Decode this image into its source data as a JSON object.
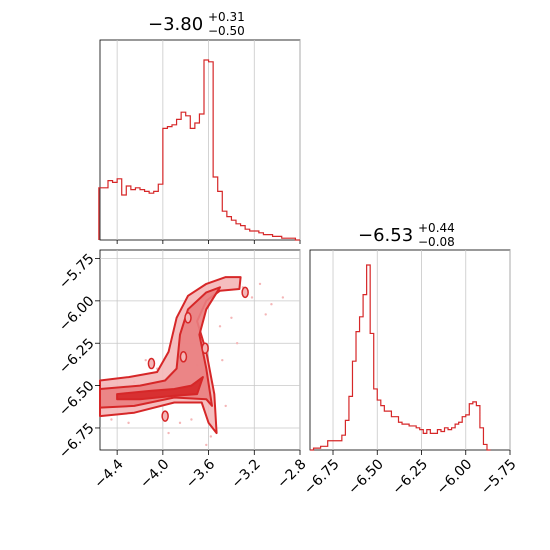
{
  "theme": {
    "accent": "#d62728",
    "fill_light": "#f4b6b7",
    "fill_mid": "#ea7e80",
    "grid": "#c8c8c8"
  },
  "chart_data": {
    "type": "corner",
    "parameters": [
      {
        "title_main": "−3.80",
        "title_sup": "+0.31",
        "title_sub": "−0.50",
        "xlim": [
          -4.55,
          -2.8
        ],
        "hist": [
          [
            -4.54,
            0.29
          ],
          [
            -4.5,
            0.29
          ],
          [
            -4.46,
            0.33
          ],
          [
            -4.42,
            0.32
          ],
          [
            -4.38,
            0.34
          ],
          [
            -4.34,
            0.25
          ],
          [
            -4.3,
            0.3
          ],
          [
            -4.26,
            0.28
          ],
          [
            -4.22,
            0.29
          ],
          [
            -4.18,
            0.28
          ],
          [
            -4.14,
            0.27
          ],
          [
            -4.1,
            0.26
          ],
          [
            -4.06,
            0.27
          ],
          [
            -4.02,
            0.31
          ],
          [
            -3.98,
            0.62
          ],
          [
            -3.94,
            0.63
          ],
          [
            -3.9,
            0.64
          ],
          [
            -3.86,
            0.67
          ],
          [
            -3.82,
            0.71
          ],
          [
            -3.78,
            0.69
          ],
          [
            -3.74,
            0.62
          ],
          [
            -3.7,
            0.65
          ],
          [
            -3.66,
            0.7
          ],
          [
            -3.62,
            1.0
          ],
          [
            -3.58,
            0.99
          ],
          [
            -3.54,
            0.35
          ],
          [
            -3.5,
            0.27
          ],
          [
            -3.46,
            0.16
          ],
          [
            -3.42,
            0.13
          ],
          [
            -3.38,
            0.11
          ],
          [
            -3.34,
            0.09
          ],
          [
            -3.3,
            0.08
          ],
          [
            -3.26,
            0.06
          ],
          [
            -3.22,
            0.05
          ],
          [
            -3.18,
            0.05
          ],
          [
            -3.14,
            0.04
          ],
          [
            -3.1,
            0.03
          ],
          [
            -3.06,
            0.03
          ],
          [
            -3.02,
            0.02
          ],
          [
            -2.98,
            0.02
          ],
          [
            -2.94,
            0.01
          ],
          [
            -2.9,
            0.01
          ],
          [
            -2.86,
            0.01
          ],
          [
            -2.82,
            0.0
          ]
        ],
        "ticks": [
          -4.4,
          -4.0,
          -3.6,
          -3.2,
          -2.8
        ],
        "tick_labels": [
          "−4.4",
          "−4.0",
          "−3.6",
          "−3.2",
          "−2.8"
        ]
      },
      {
        "title_main": "−6.53",
        "title_sup": "+0.44",
        "title_sub": "−0.08",
        "xlim": [
          -6.88,
          -5.75
        ],
        "hist": [
          [
            -6.87,
            0.0
          ],
          [
            -6.85,
            0.01
          ],
          [
            -6.83,
            0.01
          ],
          [
            -6.81,
            0.02
          ],
          [
            -6.79,
            0.02
          ],
          [
            -6.77,
            0.05
          ],
          [
            -6.75,
            0.05
          ],
          [
            -6.73,
            0.05
          ],
          [
            -6.71,
            0.05
          ],
          [
            -6.69,
            0.08
          ],
          [
            -6.67,
            0.16
          ],
          [
            -6.65,
            0.29
          ],
          [
            -6.63,
            0.48
          ],
          [
            -6.61,
            0.64
          ],
          [
            -6.59,
            0.72
          ],
          [
            -6.57,
            0.84
          ],
          [
            -6.55,
            1.0
          ],
          [
            -6.53,
            0.63
          ],
          [
            -6.51,
            0.33
          ],
          [
            -6.49,
            0.27
          ],
          [
            -6.47,
            0.24
          ],
          [
            -6.45,
            0.21
          ],
          [
            -6.43,
            0.21
          ],
          [
            -6.41,
            0.18
          ],
          [
            -6.39,
            0.18
          ],
          [
            -6.37,
            0.15
          ],
          [
            -6.35,
            0.14
          ],
          [
            -6.33,
            0.14
          ],
          [
            -6.31,
            0.13
          ],
          [
            -6.29,
            0.13
          ],
          [
            -6.27,
            0.12
          ],
          [
            -6.25,
            0.11
          ],
          [
            -6.23,
            0.09
          ],
          [
            -6.21,
            0.11
          ],
          [
            -6.19,
            0.09
          ],
          [
            -6.17,
            0.09
          ],
          [
            -6.15,
            0.11
          ],
          [
            -6.13,
            0.1
          ],
          [
            -6.11,
            0.12
          ],
          [
            -6.09,
            0.11
          ],
          [
            -6.07,
            0.12
          ],
          [
            -6.05,
            0.14
          ],
          [
            -6.03,
            0.15
          ],
          [
            -6.01,
            0.18
          ],
          [
            -5.99,
            0.19
          ],
          [
            -5.97,
            0.25
          ],
          [
            -5.95,
            0.26
          ],
          [
            -5.93,
            0.24
          ],
          [
            -5.91,
            0.12
          ],
          [
            -5.89,
            0.03
          ],
          [
            -5.87,
            0.0
          ]
        ],
        "ticks": [
          -6.75,
          -6.5,
          -6.25,
          -6.0,
          -5.75
        ],
        "tick_labels": [
          "−6.75",
          "−6.50",
          "−6.25",
          "−6.00",
          "−5.75"
        ]
      }
    ],
    "joint": {
      "xlim": [
        -4.55,
        -2.8
      ],
      "ylim": [
        -6.88,
        -5.7
      ],
      "y_ticks": [
        -5.75,
        -6.0,
        -6.25,
        -6.5,
        -6.75
      ],
      "y_tick_labels": [
        "−5.75",
        "−6.00",
        "−6.25",
        "−6.50",
        "−6.75"
      ],
      "x_ticks": [
        -4.4,
        -4.0,
        -3.6,
        -3.2,
        -2.8
      ],
      "x_tick_labels": [
        "−4.4",
        "−4.0",
        "−3.6",
        "−3.2",
        "−2.8"
      ],
      "contours": [
        {
          "level": "outer",
          "points": [
            [
              -4.55,
              -6.47
            ],
            [
              -4.3,
              -6.45
            ],
            [
              -4.05,
              -6.42
            ],
            [
              -3.95,
              -6.3
            ],
            [
              -3.88,
              -6.1
            ],
            [
              -3.78,
              -5.97
            ],
            [
              -3.62,
              -5.9
            ],
            [
              -3.45,
              -5.86
            ],
            [
              -3.32,
              -5.86
            ],
            [
              -3.33,
              -5.93
            ],
            [
              -3.5,
              -5.94
            ],
            [
              -3.62,
              -6.0
            ],
            [
              -3.7,
              -6.12
            ],
            [
              -3.62,
              -6.3
            ],
            [
              -3.55,
              -6.55
            ],
            [
              -3.53,
              -6.78
            ],
            [
              -3.6,
              -6.72
            ],
            [
              -3.66,
              -6.6
            ],
            [
              -3.9,
              -6.6
            ],
            [
              -4.25,
              -6.66
            ],
            [
              -4.55,
              -6.68
            ]
          ]
        },
        {
          "level": "mid",
          "points": [
            [
              -4.55,
              -6.52
            ],
            [
              -4.2,
              -6.5
            ],
            [
              -3.98,
              -6.47
            ],
            [
              -3.88,
              -6.4
            ],
            [
              -3.85,
              -6.2
            ],
            [
              -3.78,
              -6.05
            ],
            [
              -3.62,
              -5.95
            ],
            [
              -3.5,
              -5.92
            ],
            [
              -3.62,
              -6.05
            ],
            [
              -3.68,
              -6.2
            ],
            [
              -3.62,
              -6.4
            ],
            [
              -3.57,
              -6.62
            ],
            [
              -3.62,
              -6.58
            ],
            [
              -3.9,
              -6.57
            ],
            [
              -4.25,
              -6.62
            ],
            [
              -4.55,
              -6.63
            ]
          ]
        },
        {
          "level": "inner",
          "points": [
            [
              -4.4,
              -6.55
            ],
            [
              -4.1,
              -6.53
            ],
            [
              -3.9,
              -6.52
            ],
            [
              -3.75,
              -6.5
            ],
            [
              -3.65,
              -6.45
            ],
            [
              -3.7,
              -6.55
            ],
            [
              -3.9,
              -6.56
            ],
            [
              -4.2,
              -6.58
            ],
            [
              -4.4,
              -6.58
            ]
          ]
        }
      ],
      "scatter": [
        [
          -3.3,
          -5.92
        ],
        [
          -3.22,
          -5.98
        ],
        [
          -3.15,
          -5.9
        ],
        [
          -3.05,
          -6.02
        ],
        [
          -3.4,
          -6.1
        ],
        [
          -3.35,
          -6.25
        ],
        [
          -3.48,
          -6.35
        ],
        [
          -3.8,
          -6.3
        ],
        [
          -3.9,
          -6.18
        ],
        [
          -4.05,
          -6.4
        ],
        [
          -4.15,
          -6.35
        ],
        [
          -4.25,
          -6.48
        ],
        [
          -3.75,
          -6.7
        ],
        [
          -3.58,
          -6.8
        ],
        [
          -3.62,
          -6.85
        ],
        [
          -3.95,
          -6.78
        ],
        [
          -2.95,
          -5.98
        ],
        [
          -3.1,
          -6.08
        ],
        [
          -3.7,
          -6.38
        ],
        [
          -3.45,
          -6.62
        ],
        [
          -4.45,
          -6.7
        ],
        [
          -4.3,
          -6.72
        ],
        [
          -3.85,
          -6.72
        ],
        [
          -3.5,
          -6.15
        ]
      ],
      "islands": [
        [
          -3.98,
          -6.68
        ],
        [
          -4.1,
          -6.37
        ],
        [
          -3.82,
          -6.33
        ],
        [
          -3.63,
          -6.28
        ],
        [
          -3.78,
          -6.1
        ],
        [
          -3.28,
          -5.95
        ]
      ]
    }
  }
}
